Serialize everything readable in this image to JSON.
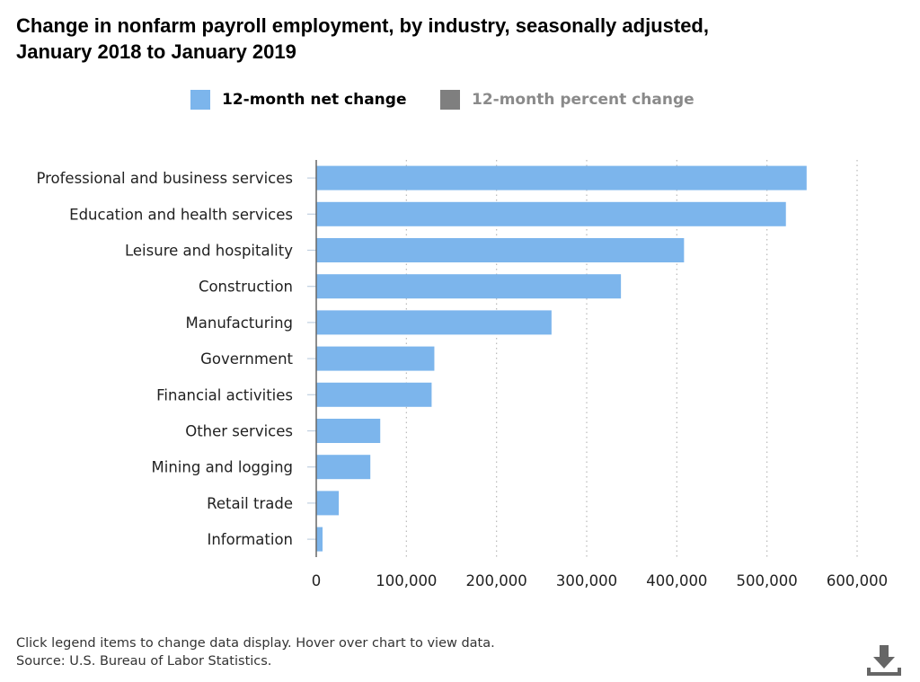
{
  "title": {
    "line1": "Change in nonfarm payroll employment, by industry, seasonally adjusted,",
    "line2": "January 2018 to January 2019"
  },
  "legend": [
    {
      "label": "12-month net change",
      "color": "#7cb5ec",
      "active": true
    },
    {
      "label": "12-month percent change",
      "color": "#7f7f7f",
      "active": false
    }
  ],
  "chart_data": {
    "type": "bar",
    "orientation": "horizontal",
    "categories": [
      "Professional and business services",
      "Education and health services",
      "Leisure and hospitality",
      "Construction",
      "Manufacturing",
      "Government",
      "Financial activities",
      "Other services",
      "Mining and logging",
      "Retail trade",
      "Information"
    ],
    "series": [
      {
        "name": "12-month net change",
        "color": "#7cb5ec",
        "values": [
          544000,
          521000,
          408000,
          338000,
          261000,
          131000,
          128000,
          71000,
          60000,
          25000,
          7000
        ]
      }
    ],
    "xlim": [
      0,
      600000
    ],
    "xticks": [
      0,
      100000,
      200000,
      300000,
      400000,
      500000,
      600000
    ],
    "xtick_labels": [
      "0",
      "100,000",
      "200,000",
      "300,000",
      "400,000",
      "500,000",
      "600,000"
    ],
    "grid": "vertical dotted",
    "legend_position": "top"
  },
  "footer": {
    "line1": "Click legend items to change data display. Hover over chart to view data.",
    "line2": "Source: U.S. Bureau of Labor Statistics."
  },
  "icons": {
    "download": "download-icon"
  }
}
